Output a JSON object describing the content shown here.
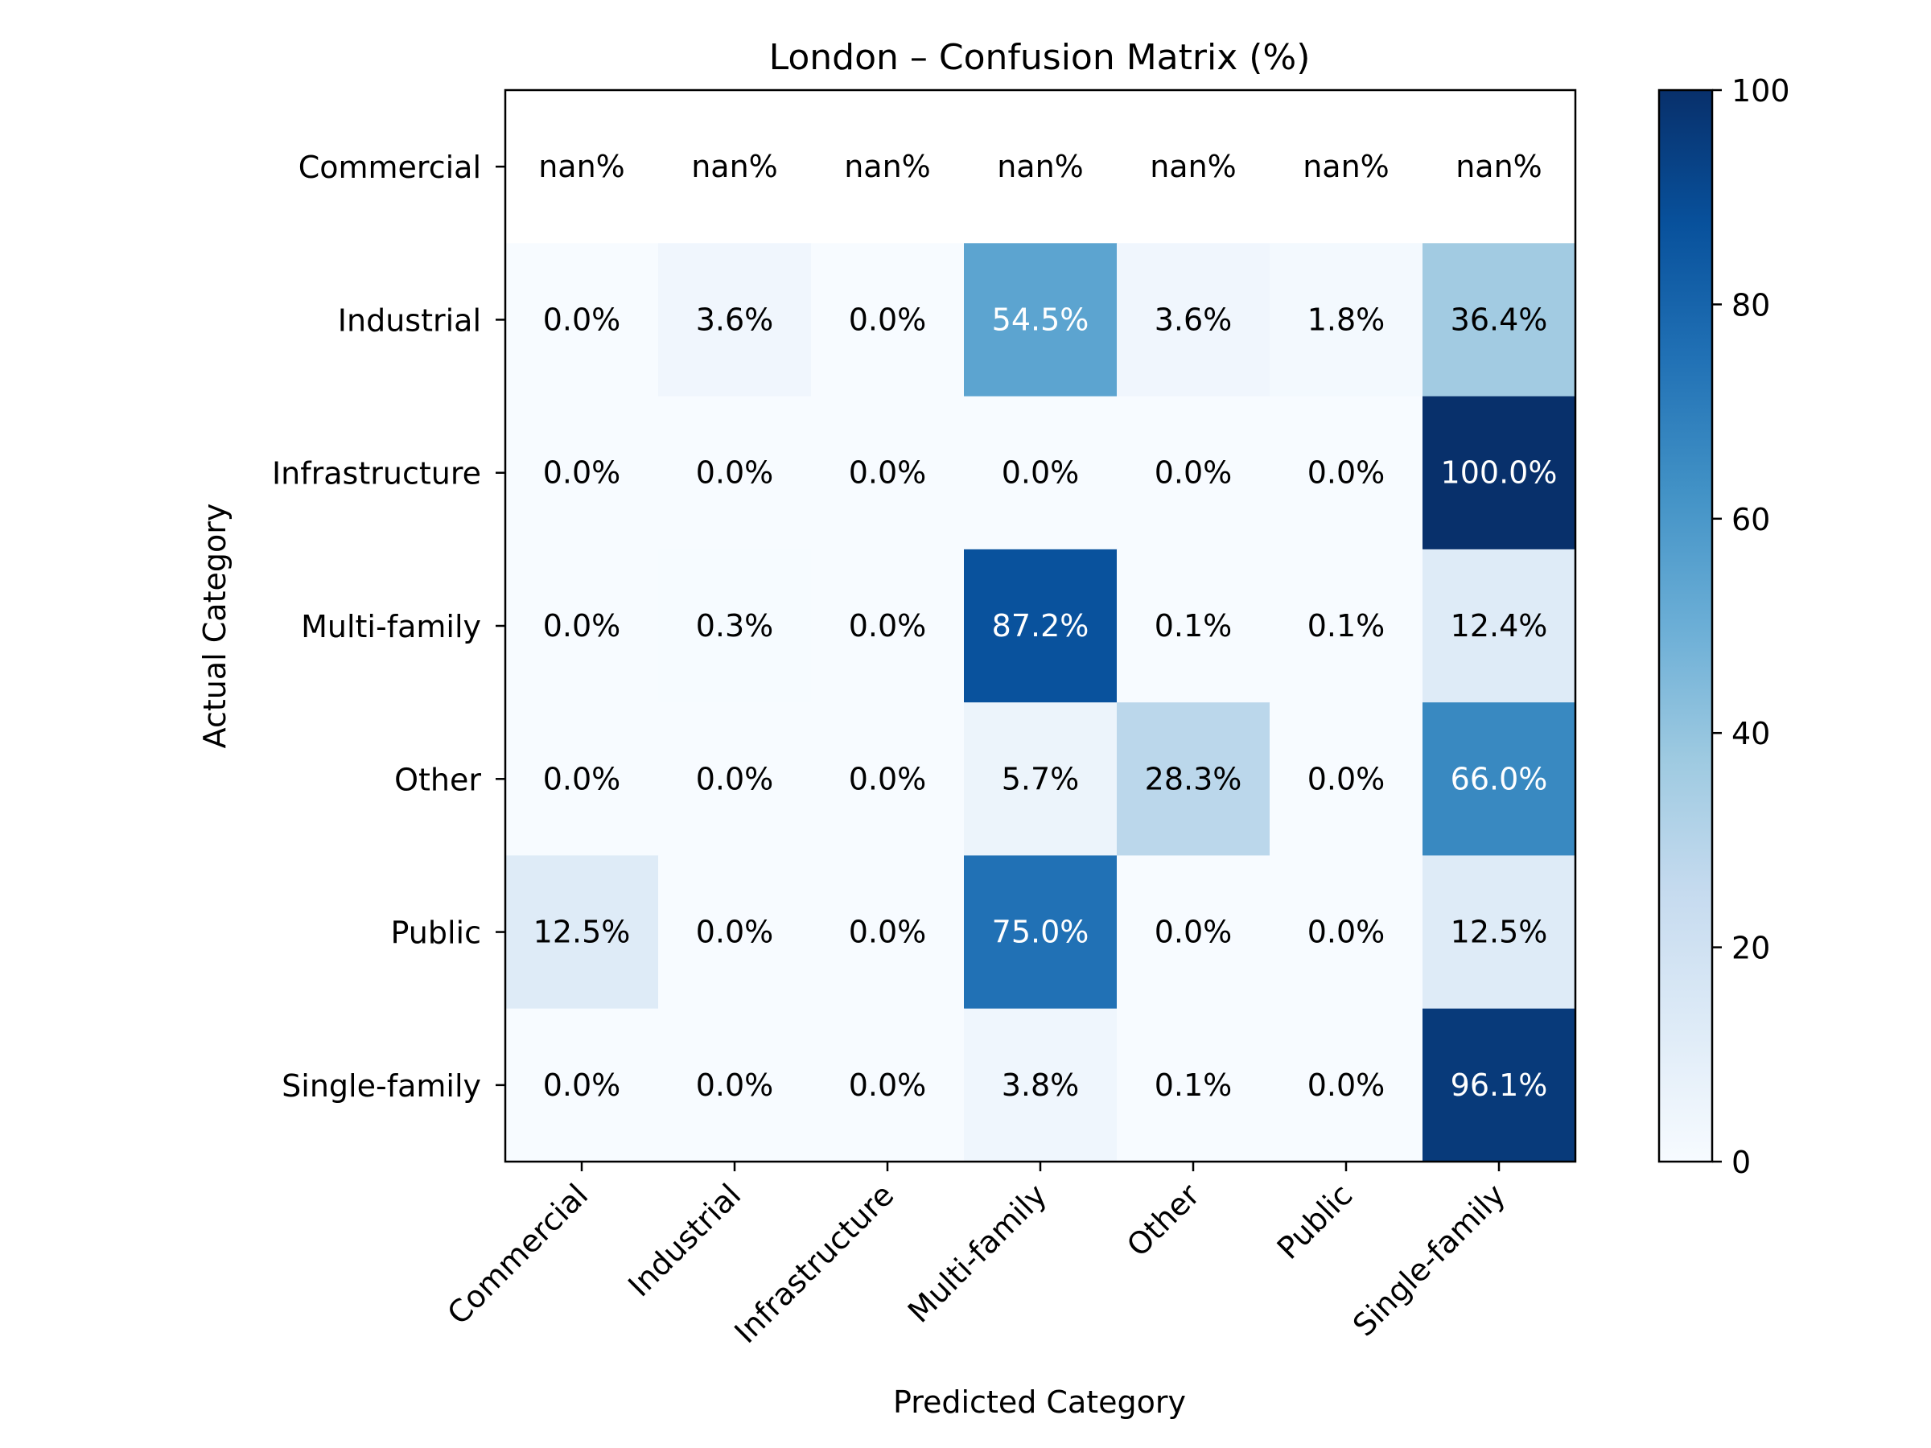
{
  "chart_data": {
    "type": "heatmap",
    "title": "London – Confusion Matrix (%)",
    "xlabel": "Predicted Category",
    "ylabel": "Actual Category",
    "x_categories": [
      "Commercial",
      "Industrial",
      "Infrastructure",
      "Multi-family",
      "Other",
      "Public",
      "Single-family"
    ],
    "y_categories": [
      "Commercial",
      "Industrial",
      "Infrastructure",
      "Multi-family",
      "Other",
      "Public",
      "Single-family"
    ],
    "values": [
      [
        null,
        null,
        null,
        null,
        null,
        null,
        null
      ],
      [
        0.0,
        3.6,
        0.0,
        54.5,
        3.6,
        1.8,
        36.4
      ],
      [
        0.0,
        0.0,
        0.0,
        0.0,
        0.0,
        0.0,
        100.0
      ],
      [
        0.0,
        0.3,
        0.0,
        87.2,
        0.1,
        0.1,
        12.4
      ],
      [
        0.0,
        0.0,
        0.0,
        5.7,
        28.3,
        0.0,
        66.0
      ],
      [
        12.5,
        0.0,
        0.0,
        75.0,
        0.0,
        0.0,
        12.5
      ],
      [
        0.0,
        0.0,
        0.0,
        3.8,
        0.1,
        0.0,
        96.1
      ]
    ],
    "cell_labels": [
      [
        "nan%",
        "nan%",
        "nan%",
        "nan%",
        "nan%",
        "nan%",
        "nan%"
      ],
      [
        "0.0%",
        "3.6%",
        "0.0%",
        "54.5%",
        "3.6%",
        "1.8%",
        "36.4%"
      ],
      [
        "0.0%",
        "0.0%",
        "0.0%",
        "0.0%",
        "0.0%",
        "0.0%",
        "100.0%"
      ],
      [
        "0.0%",
        "0.3%",
        "0.0%",
        "87.2%",
        "0.1%",
        "0.1%",
        "12.4%"
      ],
      [
        "0.0%",
        "0.0%",
        "0.0%",
        "5.7%",
        "28.3%",
        "0.0%",
        "66.0%"
      ],
      [
        "12.5%",
        "0.0%",
        "0.0%",
        "75.0%",
        "0.0%",
        "0.0%",
        "12.5%"
      ],
      [
        "0.0%",
        "0.0%",
        "0.0%",
        "3.8%",
        "0.1%",
        "0.0%",
        "96.1%"
      ]
    ],
    "colorbar": {
      "range": [
        0,
        100
      ],
      "ticks": [
        "0",
        "20",
        "40",
        "60",
        "80",
        "100"
      ]
    },
    "colormap": "Blues",
    "colors": {
      "low": "#f7fbff",
      "high": "#08306b",
      "light_text": "#ffffff",
      "dark_text": "#000000",
      "nan_cell": "#ffffff"
    }
  }
}
